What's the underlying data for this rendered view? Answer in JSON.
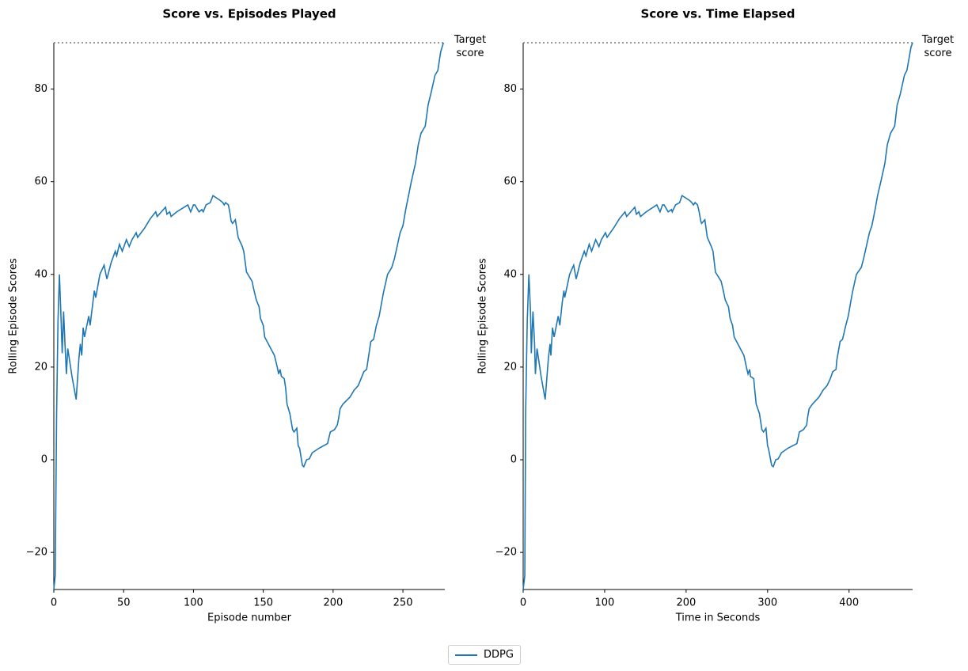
{
  "chart_data": [
    {
      "type": "line",
      "title": "Score vs. Episodes Played",
      "x_label": "Episode number",
      "y_label": "Rolling Episode Scores",
      "x": [
        0,
        1,
        2,
        3,
        4,
        5,
        6,
        7,
        8,
        9,
        10,
        13,
        16,
        18,
        19,
        20,
        21,
        22,
        25,
        26,
        28,
        29,
        30,
        33,
        36,
        38,
        41,
        44,
        45,
        47,
        49,
        52,
        54,
        56,
        59,
        60,
        65,
        69,
        73,
        74,
        80,
        81,
        83,
        84,
        88,
        96,
        98,
        100,
        101,
        104,
        106,
        107,
        109,
        112,
        114,
        119,
        121,
        122,
        123,
        125,
        126,
        127,
        128,
        130,
        132,
        135,
        136,
        138,
        142,
        143,
        145,
        147,
        148,
        150,
        151,
        158,
        160,
        161,
        162,
        163,
        165,
        166,
        167,
        169,
        171,
        172,
        174,
        175,
        176,
        178,
        179,
        181,
        183,
        185,
        190,
        196,
        198,
        201,
        203,
        204,
        205,
        207,
        212,
        215,
        218,
        220,
        222,
        224,
        225,
        227,
        229,
        231,
        233,
        236,
        239,
        242,
        244,
        248,
        250,
        252,
        254,
        256,
        259,
        261,
        263,
        266,
        268,
        270,
        273,
        275,
        277,
        278,
        279
      ],
      "series": [
        {
          "name": "DDPG",
          "color": "#1f77b4",
          "values": [
            -28,
            -25,
            10,
            30,
            40,
            32,
            23,
            32,
            25,
            18.5,
            24,
            18,
            13,
            22,
            25,
            22.5,
            28.5,
            26.5,
            31,
            29,
            34,
            36.5,
            35,
            40,
            42,
            39,
            42.5,
            45,
            44,
            46.5,
            45,
            47.5,
            46,
            47.5,
            49,
            48,
            50,
            52,
            53.5,
            52.5,
            54.5,
            53,
            53.5,
            52.5,
            53.5,
            55,
            53.5,
            55,
            55,
            53.5,
            54,
            53.5,
            55,
            55.5,
            57,
            56,
            55.5,
            55,
            55.5,
            55,
            53.5,
            51.5,
            51,
            51.8,
            48,
            46,
            45,
            40.5,
            38.5,
            37,
            34.5,
            33,
            30.5,
            29,
            26.5,
            22.5,
            20,
            18.5,
            19.5,
            18,
            17.5,
            15.5,
            12,
            10,
            6.5,
            6,
            6.8,
            3,
            2.5,
            -1.2,
            -1.5,
            0,
            0.2,
            1.5,
            2.5,
            3.5,
            6,
            6.5,
            7.5,
            9,
            11,
            12,
            13.5,
            15,
            16,
            17.5,
            19,
            19.5,
            21.5,
            25.5,
            26,
            29,
            31,
            36,
            40,
            41.5,
            43.5,
            49,
            50.5,
            54,
            57,
            60,
            64,
            68,
            70.5,
            72,
            76.5,
            79,
            83,
            84,
            88,
            89,
            90
          ]
        }
      ],
      "xlim": [
        0,
        280
      ],
      "ylim": [
        -28,
        90
      ],
      "xticks": [
        0,
        50,
        100,
        150,
        200,
        250
      ],
      "yticks": [
        {
          "value": -20,
          "label": "−20"
        },
        0,
        20,
        40,
        60,
        80
      ],
      "target": {
        "value": 90,
        "label": "Target\nscore"
      },
      "legend": "lower center"
    },
    {
      "type": "line",
      "title": "Score vs. Time Elapsed",
      "x_label": "Time in Seconds",
      "y_label": "Rolling Episode Scores",
      "x": [
        0,
        2,
        3,
        5,
        7,
        9,
        10,
        12,
        14,
        15,
        17,
        22,
        27,
        31,
        33,
        34,
        36,
        38,
        43,
        45,
        48,
        50,
        51,
        57,
        62,
        65,
        70,
        75,
        77,
        81,
        84,
        89,
        93,
        96,
        101,
        103,
        111,
        118,
        125,
        127,
        137,
        139,
        142,
        144,
        151,
        164,
        168,
        171,
        173,
        178,
        182,
        183,
        187,
        192,
        195,
        204,
        207,
        209,
        211,
        214,
        216,
        218,
        219,
        223,
        226,
        231,
        233,
        236,
        243,
        245,
        248,
        252,
        254,
        257,
        259,
        271,
        274,
        276,
        278,
        279,
        283,
        284,
        286,
        290,
        293,
        295,
        298,
        300,
        301,
        305,
        307,
        310,
        313,
        317,
        325,
        336,
        339,
        344,
        348,
        349,
        351,
        355,
        363,
        368,
        373,
        377,
        380,
        384,
        385,
        389,
        392,
        396,
        399,
        404,
        409,
        415,
        418,
        425,
        428,
        432,
        435,
        439,
        444,
        447,
        451,
        456,
        459,
        463,
        468,
        471,
        475,
        476,
        478
      ],
      "series": [
        {
          "color": "#1f77b4",
          "values": [
            -28,
            -25,
            10,
            30,
            40,
            32,
            23,
            32,
            25,
            18.5,
            24,
            18,
            13,
            22,
            25,
            22.5,
            28.5,
            26.5,
            31,
            29,
            34,
            36.5,
            35,
            40,
            42,
            39,
            42.5,
            45,
            44,
            46.5,
            45,
            47.5,
            46,
            47.5,
            49,
            48,
            50,
            52,
            53.5,
            52.5,
            54.5,
            53,
            53.5,
            52.5,
            53.5,
            55,
            53.5,
            55,
            55,
            53.5,
            54,
            53.5,
            55,
            55.5,
            57,
            56,
            55.5,
            55,
            55.5,
            55,
            53.5,
            51.5,
            51,
            51.8,
            48,
            46,
            45,
            40.5,
            38.5,
            37,
            34.5,
            33,
            30.5,
            29,
            26.5,
            22.5,
            20,
            18.5,
            19.5,
            18,
            17.5,
            15.5,
            12,
            10,
            6.5,
            6,
            6.8,
            3,
            2.5,
            -1.2,
            -1.5,
            0,
            0.2,
            1.5,
            2.5,
            3.5,
            6,
            6.5,
            7.5,
            9,
            11,
            12,
            13.5,
            15,
            16,
            17.5,
            19,
            19.5,
            21.5,
            25.5,
            26,
            29,
            31,
            36,
            40,
            41.5,
            43.5,
            49,
            50.5,
            54,
            57,
            60,
            64,
            68,
            70.5,
            72,
            76.5,
            79,
            83,
            84,
            88,
            89,
            90
          ]
        }
      ],
      "xlim": [
        0,
        478
      ],
      "ylim": [
        -28,
        90
      ],
      "xticks": [
        0,
        100,
        200,
        300,
        400
      ],
      "yticks": [
        {
          "value": -20,
          "label": "−20"
        },
        0,
        20,
        40,
        60,
        80
      ],
      "target": {
        "value": 90,
        "label": "Target\nscore"
      }
    }
  ]
}
